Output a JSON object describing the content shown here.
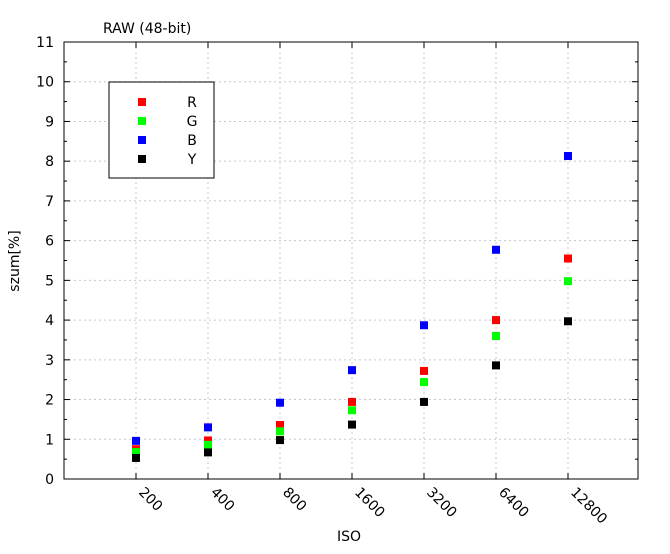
{
  "chart_data": {
    "type": "scatter",
    "title": "RAW (48-bit)",
    "xlabel": "ISO",
    "ylabel": "szum[%]",
    "categories": [
      "200",
      "400",
      "800",
      "1600",
      "3200",
      "6400",
      "12800"
    ],
    "ylim": [
      0,
      11
    ],
    "yticks": [
      0,
      1,
      2,
      3,
      4,
      5,
      6,
      7,
      8,
      9,
      10,
      11
    ],
    "grid": true,
    "legend_position": "top-left",
    "series": [
      {
        "name": "R",
        "color": "#ff0000",
        "values": [
          0.75,
          0.97,
          1.36,
          1.94,
          2.72,
          4.0,
          5.55
        ]
      },
      {
        "name": "G",
        "color": "#00ff00",
        "values": [
          0.68,
          0.86,
          1.2,
          1.73,
          2.44,
          3.6,
          4.98
        ]
      },
      {
        "name": "B",
        "color": "#0000ff",
        "values": [
          0.96,
          1.3,
          1.92,
          2.74,
          3.87,
          5.77,
          8.13
        ]
      },
      {
        "name": "Y",
        "color": "#000000",
        "values": [
          0.53,
          0.67,
          0.98,
          1.37,
          1.94,
          2.86,
          3.97
        ]
      }
    ]
  }
}
